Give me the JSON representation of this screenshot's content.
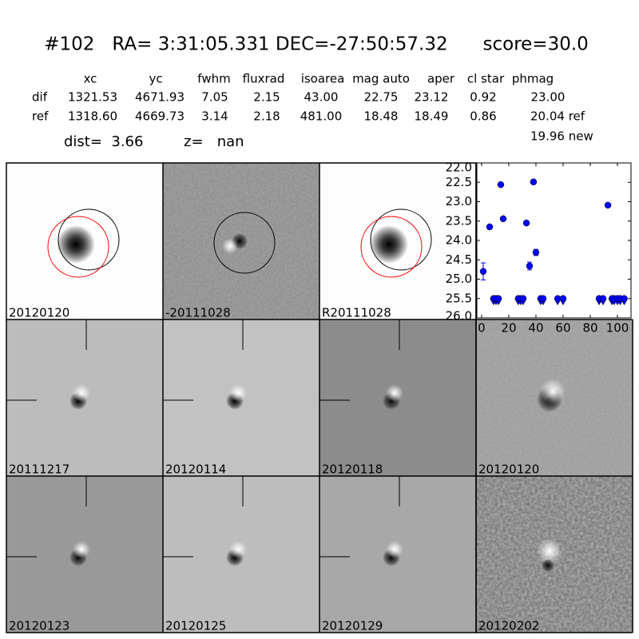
{
  "header": {
    "title": "#102   RA= 3:31:05.331 DEC=-27:50:57.32      score=30.0"
  },
  "table": {
    "columns": [
      "xc",
      "yc",
      "fwhm",
      "fluxrad",
      "isoarea",
      "mag auto",
      "aper",
      "cl star",
      "phmag"
    ],
    "rows": [
      [
        "dif",
        "1321.53",
        "4671.93",
        "7.05",
        "2.15",
        "43.00",
        "22.75",
        "23.12",
        "0.92",
        "23.00"
      ],
      [
        "ref",
        "1318.60",
        "4669.73",
        "3.14",
        "2.18",
        "481.00",
        "18.48",
        "18.49",
        "0.86",
        "20.04 ref"
      ]
    ],
    "extra": "19.96 new"
  },
  "dist": "dist=  3.66",
  "z": "z=   nan",
  "panels": [
    {
      "label": "20120120"
    },
    {
      "label": "-20111028"
    },
    {
      "label": "R20111028"
    },
    {
      "label": "20111217"
    },
    {
      "label": "20120114"
    },
    {
      "label": "20120118"
    },
    {
      "label": "20120120",
      "color": "#ff0000"
    },
    {
      "label": "20120123"
    },
    {
      "label": "20120125"
    },
    {
      "label": "20120129"
    },
    {
      "label": "20120202"
    }
  ],
  "chart_data": {
    "type": "scatter",
    "xlim": [
      -3.5,
      110
    ],
    "ylim": [
      22,
      26
    ],
    "invert_y": true,
    "xticks": [
      0,
      20,
      40,
      60,
      80,
      100
    ],
    "yticks": [
      {
        "value": 22,
        "label": "22.0"
      },
      {
        "value": 22.5,
        "label": "22.5"
      },
      {
        "value": 23,
        "label": "23.0"
      },
      {
        "value": 23.5,
        "label": "23.5"
      },
      {
        "value": 24,
        "label": "24.0"
      },
      {
        "value": 24.5,
        "label": "24.5"
      },
      {
        "value": 25,
        "label": "25.0"
      },
      {
        "value": 25.5,
        "label": "25.5"
      },
      {
        "value": 26,
        "label": "26.0"
      }
    ],
    "series": [
      {
        "marker": "circle",
        "color": "#0000ff",
        "x": [
          1.2,
          5.9,
          14.1,
          15.9,
          33,
          35.3,
          38.2,
          40,
          93
        ],
        "values": [
          24.8,
          23.65,
          22.56,
          23.44,
          23.55,
          24.66,
          22.49,
          24.31,
          23.09
        ],
        "errors": [
          0.22,
          0.03,
          0.02,
          0.03,
          0.04,
          0.1,
          0.02,
          0.08,
          0.02
        ]
      },
      {
        "marker": "limit",
        "color": "#0000ff",
        "x": [
          8.8,
          10.6,
          12.4,
          27,
          28.8,
          30.6,
          43.5,
          45.3,
          56,
          60,
          86.5,
          89.4,
          96,
          97.6,
          100,
          102,
          105
        ],
        "values": [
          25.5,
          25.5,
          25.5,
          25.5,
          25.5,
          25.5,
          25.5,
          25.5,
          25.5,
          25.5,
          25.5,
          25.5,
          25.5,
          25.5,
          25.5,
          25.5,
          25.5
        ]
      }
    ]
  }
}
